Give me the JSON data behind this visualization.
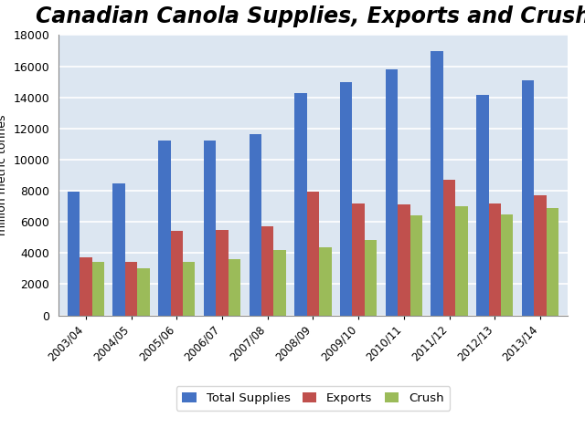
{
  "title": "Canadian Canola Supplies, Exports and Crush",
  "ylabel": "million metric tonnes",
  "categories": [
    "2003/04",
    "2004/05",
    "2005/06",
    "2006/07",
    "2007/08",
    "2008/09",
    "2009/10",
    "2010/11",
    "2011/12",
    "2012/13",
    "2013/14"
  ],
  "total_supplies": [
    7950,
    8500,
    11250,
    11250,
    11650,
    14250,
    15000,
    15800,
    16950,
    14150,
    15100
  ],
  "exports": [
    3750,
    3450,
    5450,
    5500,
    5700,
    7950,
    7200,
    7150,
    8700,
    7200,
    7700
  ],
  "crush": [
    3450,
    3050,
    3450,
    3600,
    4200,
    4350,
    4850,
    6400,
    7000,
    6500,
    6900
  ],
  "color_supplies": "#4472C4",
  "color_exports": "#C0504D",
  "color_crush": "#9BBB59",
  "ylim": [
    0,
    18000
  ],
  "yticks": [
    0,
    2000,
    4000,
    6000,
    8000,
    10000,
    12000,
    14000,
    16000,
    18000
  ],
  "title_fontsize": 17,
  "title_fontstyle": "italic",
  "title_fontweight": "bold",
  "legend_labels": [
    "Total Supplies",
    "Exports",
    "Crush"
  ],
  "plot_bg_color": "#dce6f1",
  "fig_bg_color": "#ffffff",
  "grid_color": "#ffffff"
}
